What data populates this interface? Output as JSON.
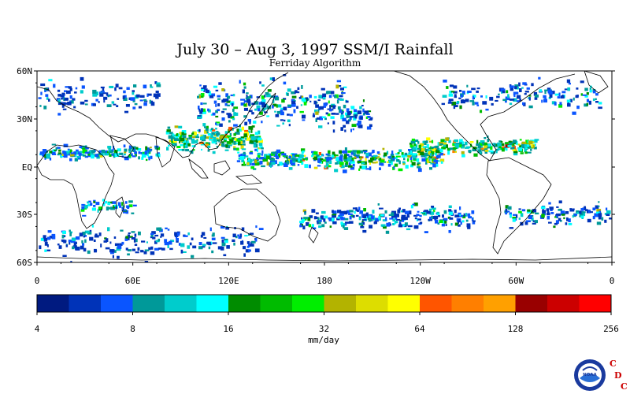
{
  "title": "July 30 – Aug 3, 1997 SSM/I Rainfall",
  "subtitle": "Ferriday Algorithm",
  "map": {
    "lat_labels": [
      "60N",
      "30N",
      "EQ",
      "30S",
      "60S"
    ],
    "lon_labels": [
      "0",
      "60E",
      "120E",
      "180",
      "120W",
      "60W",
      "0"
    ],
    "ocean_color": "#ffffff",
    "coast_color": "#000000"
  },
  "colorbar": {
    "unit": "mm/day",
    "tick_labels": [
      "4",
      "8",
      "16",
      "32",
      "64",
      "128",
      "256"
    ],
    "colors": [
      "#001a80",
      "#0033b8",
      "#0a55ff",
      "#009999",
      "#00cccc",
      "#00ffff",
      "#008c00",
      "#00bb00",
      "#00ee00",
      "#b3b300",
      "#dddd00",
      "#ffff00",
      "#ff5500",
      "#ff7f00",
      "#ffa000",
      "#990000",
      "#cc0000",
      "#ff0000"
    ]
  },
  "logo": {
    "agency": "NOAA",
    "letters": [
      "C",
      "D",
      "C"
    ],
    "letter_color": "#cc0000",
    "icon": "noaa-logo-icon"
  }
}
